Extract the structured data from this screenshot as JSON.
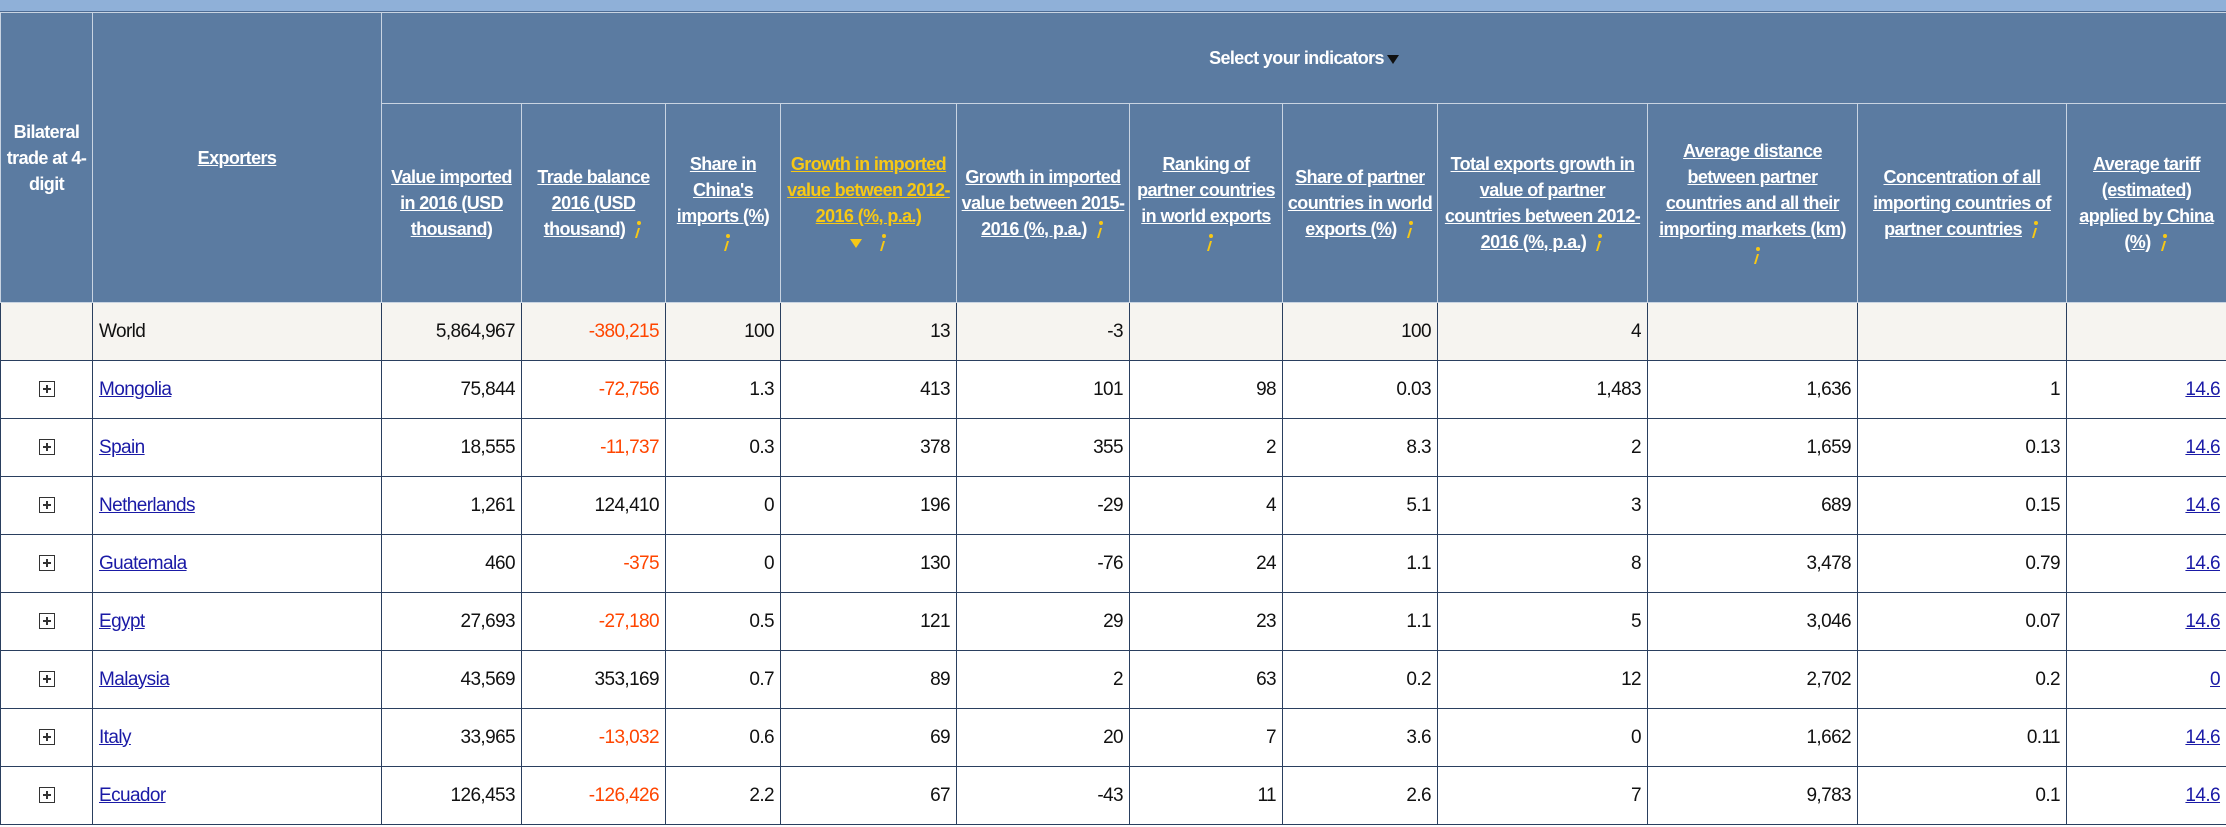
{
  "header": {
    "selector": "Select your indicators",
    "columns": [
      "Bilateral trade at 4-digit",
      "Exporters",
      "Value imported in 2016 (USD thousand)",
      "Trade balance 2016 (USD thousand)",
      "Share in China's imports (%)",
      "Growth in imported value between 2012-2016 (%, p.a.)",
      "Growth in imported value between 2015-2016 (%, p.a.)",
      "Ranking of partner countries in world exports",
      "Share of partner countries in world exports (%)",
      "Total exports growth in value of partner countries between 2012-2016 (%, p.a.)",
      "Average distance between partner countries and all their importing markets (km)",
      "Concentration of all importing countries of partner countries",
      "Average tariff (estimated) applied by China (%)"
    ]
  },
  "rows": [
    {
      "exporter": "World",
      "cells": [
        "5,864,967",
        "-380,215",
        "100",
        "13",
        "-3",
        null,
        "100",
        "4",
        null,
        null,
        null
      ]
    },
    {
      "exporter": "Mongolia",
      "cells": [
        "75,844",
        "-72,756",
        "1.3",
        "413",
        "101",
        "98",
        "0.03",
        "1,483",
        "1,636",
        "1",
        "14.6"
      ]
    },
    {
      "exporter": "Spain",
      "cells": [
        "18,555",
        "-11,737",
        "0.3",
        "378",
        "355",
        "2",
        "8.3",
        "2",
        "1,659",
        "0.13",
        "14.6"
      ]
    },
    {
      "exporter": "Netherlands",
      "cells": [
        "1,261",
        "124,410",
        "0",
        "196",
        "-29",
        "4",
        "5.1",
        "3",
        "689",
        "0.15",
        "14.6"
      ]
    },
    {
      "exporter": "Guatemala",
      "cells": [
        "460",
        "-375",
        "0",
        "130",
        "-76",
        "24",
        "1.1",
        "8",
        "3,478",
        "0.79",
        "14.6"
      ]
    },
    {
      "exporter": "Egypt",
      "cells": [
        "27,693",
        "-27,180",
        "0.5",
        "121",
        "29",
        "23",
        "1.1",
        "5",
        "3,046",
        "0.07",
        "14.6"
      ]
    },
    {
      "exporter": "Malaysia",
      "cells": [
        "43,569",
        "353,169",
        "0.7",
        "89",
        "2",
        "63",
        "0.2",
        "12",
        "2,702",
        "0.2",
        "0"
      ]
    },
    {
      "exporter": "Italy",
      "cells": [
        "33,965",
        "-13,032",
        "0.6",
        "69",
        "20",
        "7",
        "3.6",
        "0",
        "1,662",
        "0.11",
        "14.6"
      ]
    },
    {
      "exporter": "Ecuador",
      "cells": [
        "126,453",
        "-126,426",
        "2.2",
        "67",
        "-43",
        "11",
        "2.6",
        "7",
        "9,783",
        "0.1",
        "14.6"
      ]
    }
  ]
}
